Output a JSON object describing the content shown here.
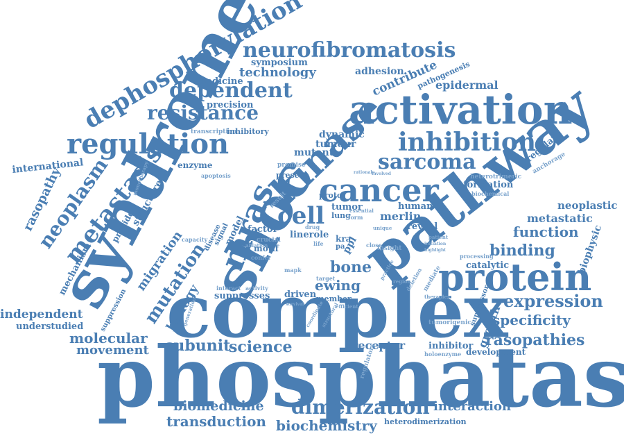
{
  "colors": {
    "primary": "#4a7eb3",
    "light": "#7aa3cc"
  },
  "words": {
    "phosphatase": "phosphatase",
    "complex": "complex",
    "syndrome": "syndrome",
    "shoc": "shoc",
    "pathway": "pathway",
    "activation": "activation",
    "kinase": "kinase",
    "protein": "protein",
    "mras": "mras",
    "cancer": "cancer",
    "regulation": "regulation",
    "dephosphorylation": "dephosphorylation",
    "neurofibromatosis": "neurofibromatosis",
    "inhibition": "inhibition",
    "sarcoma": "sarcoma",
    "dependent": "dependent",
    "resistance": "resistance",
    "metastasis": "metastasis",
    "neoplasm": "neoplasm",
    "cell": "cell",
    "mutation": "mutation",
    "dimerization": "dimerization",
    "transduction": "transduction",
    "biochemistry": "biochemistry",
    "biomedicine": "biomedicine",
    "interaction": "interaction",
    "expression": "expression",
    "binding": "binding",
    "function": "function",
    "specificity": "specificity",
    "rasopathies": "rasopathies",
    "subunit": "subunit",
    "science": "science",
    "molecular": "molecular",
    "movement": "movement",
    "independent": "independent",
    "understudied": "understudied",
    "international": "international",
    "rasopathy": "rasopathy",
    "mechanism": "mechanism",
    "migration": "migration",
    "biology": "biology",
    "technology": "technology",
    "symposium": "symposium",
    "adhesion": "adhesion",
    "contribute": "contribute",
    "epidermal": "epidermal",
    "pathogenesis": "pathogenesis",
    "medicine": "medicine",
    "precision": "precision",
    "transcription": "transcription",
    "inhibitory": "inhibitory",
    "dynamic": "dynamic",
    "tumour": "tumour",
    "mutant": "mutant",
    "enzyme": "enzyme",
    "structure": "structure",
    "provide": "provide",
    "apoptosis": "apoptosis",
    "promise": "promise",
    "present": "present",
    "heterotrimeric": "heterotrimeric",
    "formation": "formation",
    "biochemical": "biochemical",
    "neoplastic": "neoplastic",
    "metastatic": "metastatic",
    "biophysic": "biophysic",
    "regulate": "regulate",
    "anchorage": "anchorage",
    "human": "human",
    "merlin": "merlin",
    "reveal": "reveal",
    "tumor": "tumor",
    "proto": "proto",
    "lung": "lung",
    "factor": "factor",
    "model": "model",
    "signal": "signal",
    "disease": "disease",
    "capacity": "capacity",
    "ablation": "ablation",
    "crucial": "crucial",
    "motif": "motif",
    "confer": "confer",
    "linerole": "linerole",
    "drug": "drug",
    "kra": "kra",
    "pa": "pa",
    "ppl": "ppl",
    "bone": "bone",
    "ewing": "ewing",
    "driven": "driven",
    "member": "member",
    "suppresses": "suppresses",
    "interact": "interact",
    "activity": "activity",
    "mapk": "mapk",
    "target": "target",
    "catalytic": "catalytic",
    "processing": "processing",
    "insight": "insight",
    "growth": "growth",
    "suppressor": "suppressor",
    "mediate": "mediate",
    "deletion": "deletion",
    "therapies": "therapies",
    "tumorigenic": "tumorigenic",
    "receptor": "receptor",
    "inhibitor": "inhibitor",
    "holoenzyme": "holoenzyme",
    "development": "development",
    "regulatory": "regulatory",
    "heterodimerization": "heterodimerization",
    "suppression": "suppression",
    "monotherapy": "monotherapy",
    "unique": "unique",
    "form": "form",
    "essential": "essential",
    "result": "result",
    "close": "close",
    "region": "region",
    "practice": "practice",
    "coordinate": "coordinate",
    "structural": "structural",
    "efficient": "efficient",
    "survival": "survival",
    "generation": "generation",
    "initiation": "initiation",
    "highlight": "highlight",
    "patient": "patient",
    "involved": "involved",
    "rationale": "rationale",
    "life": "life"
  }
}
